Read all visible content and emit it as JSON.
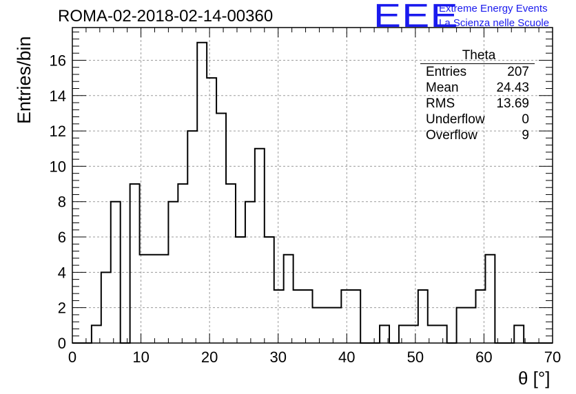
{
  "title": "ROMA-02-2018-02-14-00360",
  "logo": {
    "mark": "EEE",
    "line1": "Extreme Energy Events",
    "line2": "La Scienza nelle Scuole",
    "color": "#1a1aee"
  },
  "stats": {
    "title": "Theta",
    "rows": [
      {
        "label": "Entries",
        "value": "207"
      },
      {
        "label": "Mean",
        "value": "24.43"
      },
      {
        "label": "RMS",
        "value": "13.69"
      },
      {
        "label": "Underflow",
        "value": "0"
      },
      {
        "label": "Overflow",
        "value": "9"
      }
    ]
  },
  "chart_data": {
    "type": "bar",
    "title": "ROMA-02-2018-02-14-00360",
    "xlabel": "θ [°]",
    "ylabel": "Entries/bin",
    "xlim": [
      0,
      70
    ],
    "ylim": [
      0,
      17.85
    ],
    "xticks": [
      0,
      10,
      20,
      30,
      40,
      50,
      60,
      70
    ],
    "yticks": [
      0,
      2,
      4,
      6,
      8,
      10,
      12,
      14,
      16
    ],
    "grid": true,
    "bin_edges": [
      0,
      1.4,
      2.8,
      4.2,
      5.6,
      7.0,
      8.4,
      9.8,
      11.2,
      12.6,
      14.0,
      15.4,
      16.8,
      18.2,
      19.6,
      21.0,
      22.4,
      23.8,
      25.2,
      26.6,
      28.0,
      29.4,
      30.8,
      32.2,
      33.6,
      35.0,
      36.4,
      37.8,
      39.2,
      40.6,
      42.0,
      43.4,
      44.8,
      46.2,
      47.6,
      49.0,
      50.4,
      51.8,
      53.2,
      54.6,
      56.0,
      57.4,
      58.8,
      60.2,
      61.6,
      63.0,
      64.4,
      65.8,
      67.2,
      68.6,
      70.0
    ],
    "values": [
      0,
      0,
      1,
      4,
      8,
      0,
      9,
      5,
      5,
      5,
      8,
      9,
      12,
      17,
      15,
      13,
      9,
      6,
      8,
      11,
      6,
      3,
      5,
      3,
      3,
      2,
      2,
      2,
      3,
      3,
      0,
      0,
      1,
      0,
      1,
      1,
      3,
      1,
      1,
      0,
      2,
      2,
      3,
      5,
      0,
      0,
      1,
      0,
      0,
      0
    ],
    "colors": {
      "line": "#000000",
      "grid": "#9a9a9a"
    }
  }
}
